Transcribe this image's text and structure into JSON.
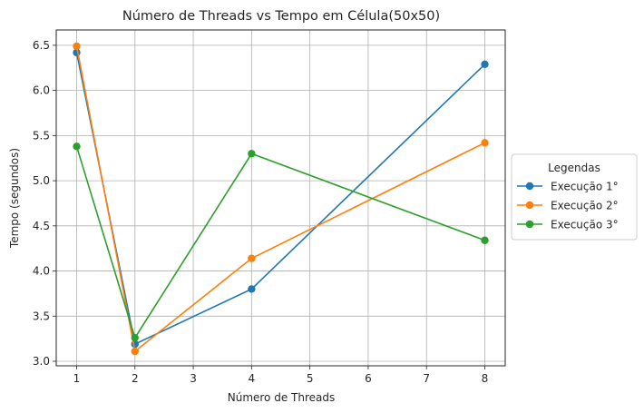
{
  "chart_data": {
    "type": "line",
    "title": "Número de Threads vs Tempo em Célula(50x50)",
    "xlabel": "Número de Threads",
    "ylabel": "Tempo (segundos)",
    "xlim": [
      0.65,
      8.35
    ],
    "ylim": [
      2.95,
      6.67
    ],
    "xticks": [
      1,
      2,
      3,
      4,
      5,
      6,
      7,
      8
    ],
    "yticks": [
      3.0,
      3.5,
      4.0,
      4.5,
      5.0,
      5.5,
      6.0,
      6.5
    ],
    "grid": true,
    "legend": {
      "title": "Legendas",
      "placement": "center-right-outside"
    },
    "series": [
      {
        "name": "Execução 1°",
        "color": "#1f77b4",
        "x": [
          1,
          2,
          4,
          8
        ],
        "y": [
          6.42,
          3.19,
          3.8,
          6.29
        ]
      },
      {
        "name": "Execução 2°",
        "color": "#ff7f0e",
        "x": [
          1,
          2,
          4,
          8
        ],
        "y": [
          6.49,
          3.11,
          4.14,
          5.42
        ]
      },
      {
        "name": "Execução 3°",
        "color": "#2ca02c",
        "x": [
          1,
          2,
          4,
          8
        ],
        "y": [
          5.38,
          3.26,
          5.3,
          4.34
        ]
      }
    ]
  }
}
